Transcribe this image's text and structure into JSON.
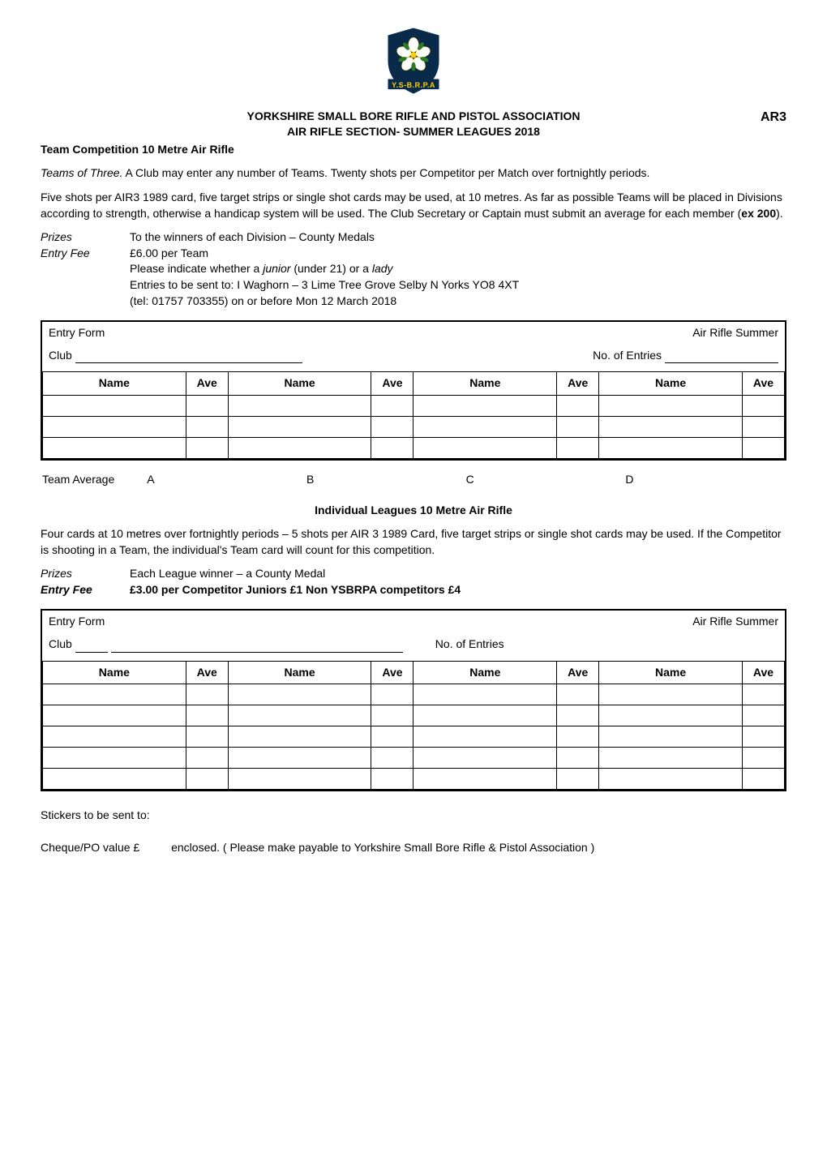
{
  "logo": {
    "banner_text": "Y.S-B.R.P.A",
    "shield_color": "#0a2a4a",
    "rose_color": "#ffffff",
    "banner_color": "#0a2a4a",
    "accent_color": "#ffd000"
  },
  "header": {
    "org": "YORKSHIRE SMALL BORE RIFLE AND PISTOL ASSOCIATION",
    "subtitle": "AIR RIFLE SECTION- SUMMER LEAGUES 2018",
    "code": "AR3"
  },
  "team_comp": {
    "title": "Team Competition 10 Metre Air Rifle",
    "para1_prefix": "Teams of Three.",
    "para1_rest": "  A Club may enter any number of Teams.  Twenty shots per Competitor per Match over fortnightly periods.",
    "para2_a": "Five shots per AIR3 1989 card, five target strips or single shot cards may be used, at 10 metres. As far as possible Teams will be placed in Divisions according to strength, otherwise a handicap system will be used. The Club Secretary or Captain must submit an average for each member (",
    "para2_bold": "ex 200",
    "para2_b": ").",
    "prizes_label": "Prizes",
    "prizes_text": "To the winners of each Division – County Medals",
    "fee_label": "Entry Fee",
    "fee_text": "£6.00 per Team",
    "note1_a": "Please indicate whether a ",
    "note1_i1": "junior",
    "note1_b": " (under 21) or a ",
    "note1_i2": "lady",
    "note2": "Entries to be sent to: I Waghorn – 3 Lime Tree Grove Selby N Yorks YO8 4XT",
    "note3": "(tel: 01757 703355)  on or before Mon 12  March 2018"
  },
  "entry_form": {
    "title": "Entry Form",
    "right": "Air Rifle Summer",
    "club_label": "Club",
    "entries_label": "No. of  Entries",
    "col_name": "Name",
    "col_ave": "Ave"
  },
  "team_avg": {
    "label": "Team Average",
    "a": "A",
    "b": "B",
    "c": "C",
    "d": "D"
  },
  "individual": {
    "heading": "Individual Leagues 10 Metre Air Rifle",
    "para": "Four cards at 10 metres over fortnightly periods – 5 shots per AIR 3 1989 Card, five target strips or single shot cards may be used. If the Competitor is shooting in a Team, the individual's Team card will count for this competition.",
    "prizes_label": "Prizes",
    "prizes_text": "Each League winner – a County Medal",
    "fee_label": "Entry Fee",
    "fee_text": "£3.00 per Competitor  Juniors £1  Non YSBRPA competitors £4"
  },
  "entry_form2": {
    "entries_label": "No. of Entries"
  },
  "footer": {
    "stickers": "Stickers to be sent to:",
    "cheque_a": "Cheque/PO  value  £",
    "cheque_b": "enclosed. ( Please make payable to Yorkshire Small Bore Rifle & Pistol Association )"
  },
  "table": {
    "team_rows": 3,
    "individual_rows": 5,
    "col_groups": 4
  }
}
